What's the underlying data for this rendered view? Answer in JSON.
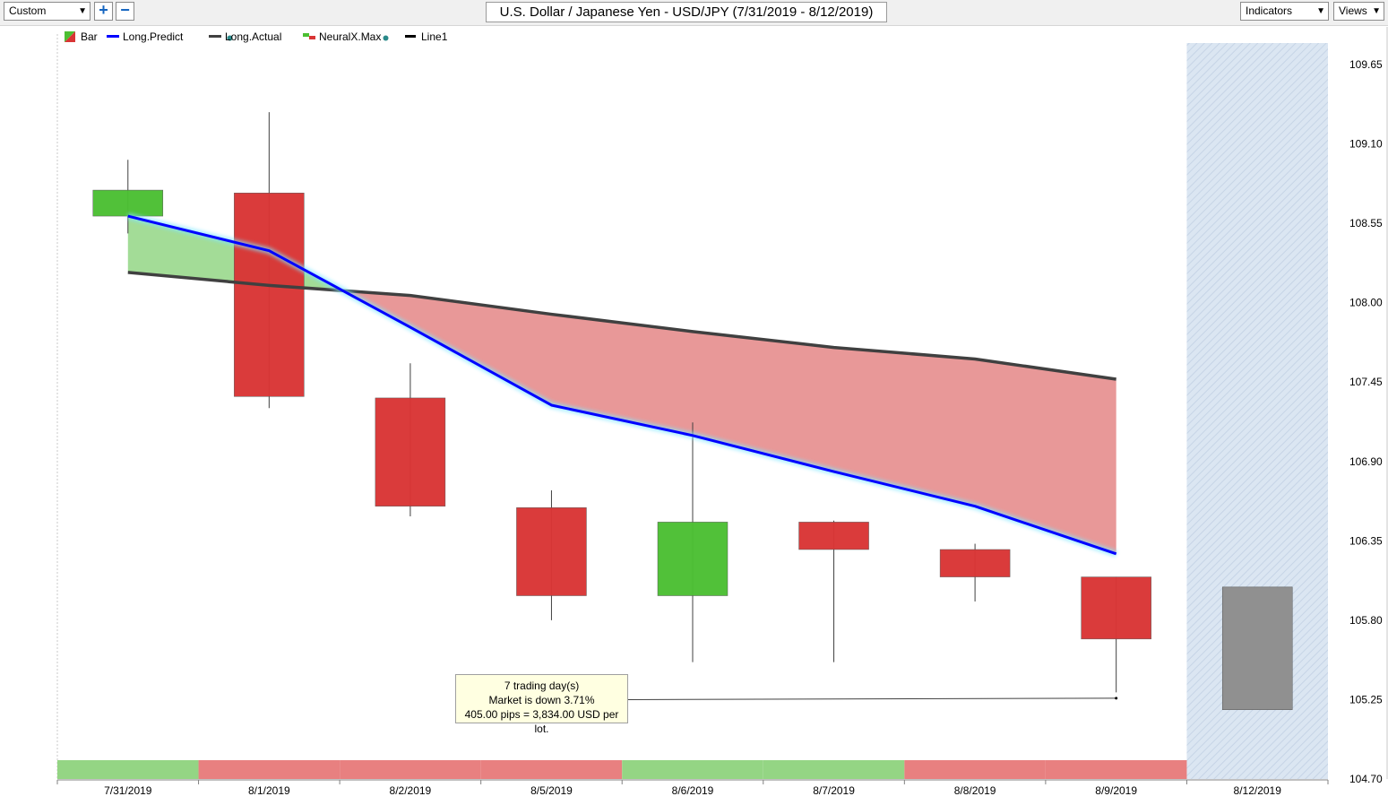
{
  "toolbar": {
    "preset_select": "Custom",
    "zoom_in_label": "+",
    "zoom_out_label": "−",
    "title": "U.S. Dollar / Japanese Yen - USD/JPY (7/31/2019 - 8/12/2019)",
    "indicators_label": "Indicators",
    "views_label": "Views"
  },
  "legend": [
    {
      "label": "Bar",
      "icon": "bar-swatch-icon"
    },
    {
      "label": "Long.Predict",
      "icon": "blue-line-icon",
      "color": "#0000ff",
      "dot": true
    },
    {
      "label": "Long.Actual",
      "icon": "dark-line-icon",
      "color": "#404040"
    },
    {
      "label": "NeuralX.Max",
      "icon": "neural-swatch-icon",
      "dot": true
    },
    {
      "label": "Line1",
      "icon": "black-line-icon",
      "color": "#000000"
    }
  ],
  "tooltip": {
    "line1": "7 trading day(s)",
    "line2": "Market is down 3.71%",
    "line3": "405.00 pips = 3,834.00 USD per lot."
  },
  "chart_data": {
    "type": "candlestick",
    "categories": [
      "7/31/2019",
      "8/1/2019",
      "8/2/2019",
      "8/5/2019",
      "8/6/2019",
      "8/7/2019",
      "8/8/2019",
      "8/9/2019",
      "8/12/2019"
    ],
    "y_ticks": [
      "109.65",
      "109.10",
      "108.55",
      "108.00",
      "107.45",
      "106.90",
      "106.35",
      "105.80",
      "105.25",
      "104.70"
    ],
    "ylim": [
      104.7,
      109.65
    ],
    "candles": [
      {
        "date": "7/31/2019",
        "open": 108.6,
        "close": 108.78,
        "high": 108.99,
        "low": 108.48,
        "color": "green"
      },
      {
        "date": "8/1/2019",
        "open": 108.76,
        "close": 107.35,
        "high": 109.32,
        "low": 107.27,
        "color": "red"
      },
      {
        "date": "8/2/2019",
        "open": 107.34,
        "close": 106.59,
        "high": 107.58,
        "low": 106.52,
        "color": "red"
      },
      {
        "date": "8/5/2019",
        "open": 106.58,
        "close": 105.97,
        "high": 106.7,
        "low": 105.8,
        "color": "red"
      },
      {
        "date": "8/6/2019",
        "open": 105.97,
        "close": 106.48,
        "high": 107.17,
        "low": 105.51,
        "color": "green"
      },
      {
        "date": "8/7/2019",
        "open": 106.48,
        "close": 106.29,
        "high": 106.49,
        "low": 105.51,
        "color": "red"
      },
      {
        "date": "8/8/2019",
        "open": 106.29,
        "close": 106.1,
        "high": 106.33,
        "low": 105.93,
        "color": "red"
      },
      {
        "date": "8/9/2019",
        "open": 106.1,
        "close": 105.67,
        "high": 106.1,
        "low": 105.3,
        "color": "red"
      },
      {
        "date": "8/12/2019",
        "open": 106.03,
        "close": 105.18,
        "high": 106.03,
        "low": 105.18,
        "color": "gray"
      }
    ],
    "series": [
      {
        "name": "Long.Predict",
        "color": "#0000ff",
        "x": [
          "7/31/2019",
          "8/1/2019",
          "8/2/2019",
          "8/5/2019",
          "8/6/2019",
          "8/7/2019",
          "8/8/2019",
          "8/9/2019"
        ],
        "values": [
          108.6,
          108.36,
          107.83,
          107.29,
          107.08,
          106.83,
          106.59,
          106.26
        ]
      },
      {
        "name": "Long.Actual",
        "color": "#404040",
        "x": [
          "7/31/2019",
          "8/1/2019",
          "8/2/2019",
          "8/5/2019",
          "8/6/2019",
          "8/7/2019",
          "8/8/2019",
          "8/9/2019"
        ],
        "values": [
          108.21,
          108.12,
          108.05,
          107.92,
          107.8,
          107.69,
          107.61,
          107.47
        ]
      },
      {
        "name": "Line1",
        "color": "#000000",
        "x": [
          "8/6/2019",
          "8/9/2019"
        ],
        "values": [
          105.25,
          105.26
        ]
      }
    ],
    "fill_colors": {
      "positive": "#a3dc97",
      "negative": "#e89898"
    },
    "band_colors": {
      "green": "#94d584",
      "red": "#e88080"
    },
    "bands": [
      "green",
      "red",
      "red",
      "red",
      "green",
      "green",
      "red",
      "red"
    ],
    "colors": {
      "up": "#4cbf33",
      "down": "#d93535",
      "neutral": "#909090",
      "forecast_bg": "#dbe6f2"
    },
    "legend_position": "top-left",
    "grid": false
  }
}
